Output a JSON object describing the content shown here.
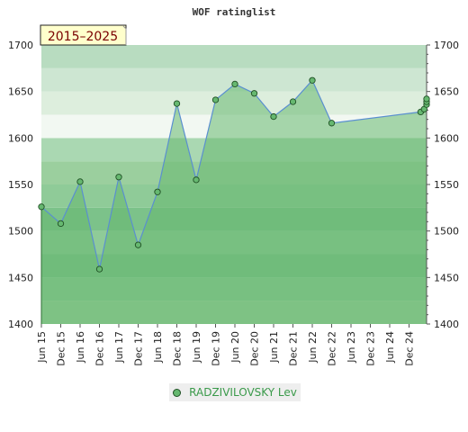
{
  "chart_data": {
    "type": "area",
    "title": "WOF ratinglist",
    "period_badge": "2015–2025",
    "ylim": [
      1400,
      1700
    ],
    "y_ticks": [
      1400,
      1450,
      1500,
      1550,
      1600,
      1650,
      1700
    ],
    "x_tick_labels": [
      "Jun 15",
      "Dec 15",
      "Jun 16",
      "Dec 16",
      "Jun 17",
      "Dec 17",
      "Jun 18",
      "Dec 18",
      "Jun 19",
      "Dec 19",
      "Jun 20",
      "Dec 20",
      "Jun 21",
      "Dec 21",
      "Jun 22",
      "Dec 22",
      "Jun 23",
      "Dec 23",
      "Jun 24",
      "Dec 24"
    ],
    "series": [
      {
        "name": "RADZIVILOVSKY Lev",
        "color": "#66b870",
        "line_color": "#5a8fd0",
        "x": [
          "Jun 15",
          "Dec 15",
          "Jun 16",
          "Dec 16",
          "Jun 17",
          "Dec 17",
          "Jun 18",
          "Dec 18",
          "Jun 19",
          "Dec 19",
          "Jun 20",
          "Dec 20",
          "Jun 21",
          "Dec 21",
          "Jun 22",
          "Dec 22",
          "Oct 24",
          "Nov 24",
          "Dec 24",
          "Jan 25",
          "Feb 25"
        ],
        "x_index": [
          0,
          1,
          2,
          3,
          4,
          5,
          6,
          7,
          8,
          9,
          10,
          11,
          12,
          13,
          14,
          15,
          19.6,
          19.78,
          19.95,
          20.12,
          20.3
        ],
        "values": [
          1526,
          1508,
          1553,
          1459,
          1558,
          1485,
          1542,
          1637,
          1555,
          1641,
          1658,
          1648,
          1623,
          1639,
          1662,
          1616,
          1628,
          1631,
          1636,
          1639,
          1642
        ]
      }
    ],
    "legend": "bottom"
  }
}
